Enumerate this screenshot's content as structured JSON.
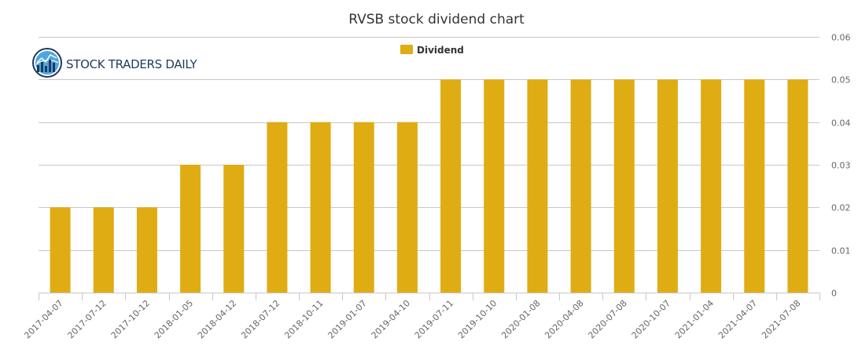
{
  "chart_data": {
    "type": "bar",
    "title": "RVSB stock dividend chart",
    "xlabel": "",
    "ylabel": "",
    "categories": [
      "2017-04-07",
      "2017-07-12",
      "2017-10-12",
      "2018-01-05",
      "2018-04-12",
      "2018-07-12",
      "2018-10-11",
      "2019-01-07",
      "2019-04-10",
      "2019-07-11",
      "2019-10-10",
      "2020-01-08",
      "2020-04-08",
      "2020-07-08",
      "2020-10-07",
      "2021-01-04",
      "2021-04-07",
      "2021-07-08"
    ],
    "series": [
      {
        "name": "Dividend",
        "values": [
          0.02,
          0.02,
          0.02,
          0.03,
          0.03,
          0.04,
          0.04,
          0.04,
          0.04,
          0.05,
          0.05,
          0.05,
          0.05,
          0.05,
          0.05,
          0.05,
          0.05,
          0.05
        ],
        "color": "#e0ac13"
      }
    ],
    "ylim": [
      0,
      0.06
    ],
    "yticks": [
      "0",
      "0.01",
      "0.02",
      "0.03",
      "0.04",
      "0.05",
      "0.06"
    ],
    "grid": true,
    "legend_position": "top-center",
    "gridline_color": "#c8c8c8"
  },
  "logo": {
    "text": "STOCK TRADERS DAILY",
    "icon": "chart-globe-icon",
    "color": "#1e3a5f"
  }
}
